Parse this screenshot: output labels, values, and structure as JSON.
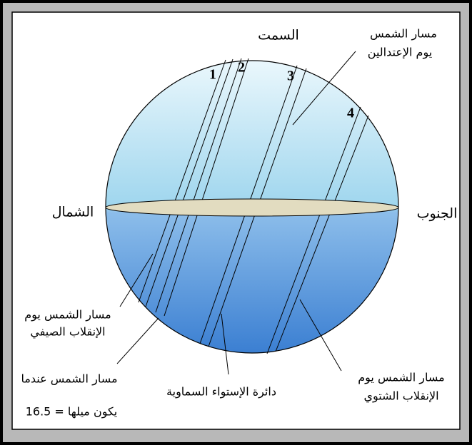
{
  "labels": {
    "zenith": "السمت",
    "north": "الشمال",
    "south": "الجنوب",
    "equinox": [
      "مسار الشمس",
      "يوم الإعتدالين"
    ],
    "summer": [
      "مسار الشمس يوم",
      "الإنقلاب الصيفي"
    ],
    "declination": [
      "مسار الشمس عندما",
      "يكون ميلها =  16.5"
    ],
    "equator": "دائرة الإستواء السماوية",
    "winter": [
      "مسار الشمس يوم",
      "الإنقلاب الشتوي"
    ],
    "numbers": [
      "1",
      "2",
      "3",
      "4"
    ]
  }
}
